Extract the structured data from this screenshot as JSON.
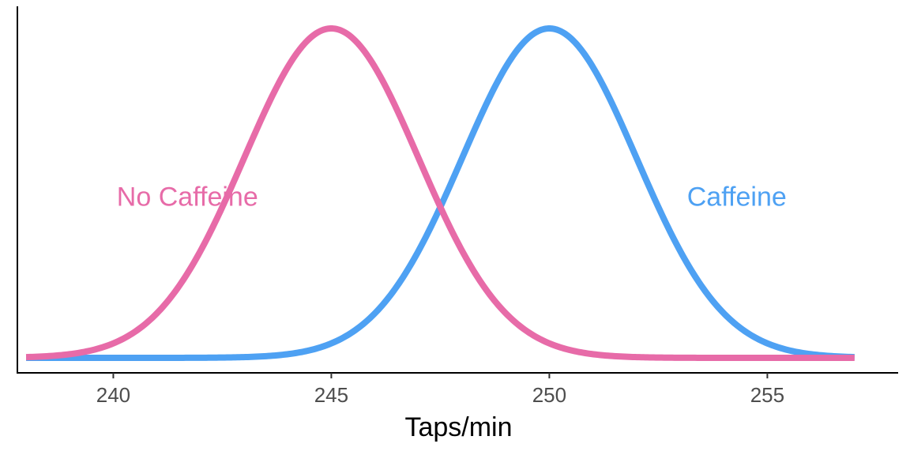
{
  "chart_data": {
    "type": "line",
    "title": "",
    "xlabel": "Taps/min",
    "ylabel": "",
    "xlim": [
      237.8,
      258.0
    ],
    "x_ticks": [
      240,
      245,
      250,
      255
    ],
    "x_tick_labels": [
      "240",
      "245",
      "250",
      "255"
    ],
    "y_ticks_shown": false,
    "grid": false,
    "legend": "none",
    "series": [
      {
        "name": "No Caffeine",
        "distribution": "normal",
        "mean": 245,
        "sd": 2,
        "x_range": [
          238,
          257
        ],
        "color": "#E76BA8"
      },
      {
        "name": "Caffeine",
        "distribution": "normal",
        "mean": 250,
        "sd": 2,
        "x_range": [
          238,
          257
        ],
        "color": "#4EA1F3"
      }
    ],
    "annotations": [
      {
        "text": "No Caffeine",
        "x": 241.7,
        "y_fraction": 0.49,
        "color": "#E76BA8"
      },
      {
        "text": "Caffeine",
        "x": 254.3,
        "y_fraction": 0.49,
        "color": "#4EA1F3"
      }
    ]
  }
}
